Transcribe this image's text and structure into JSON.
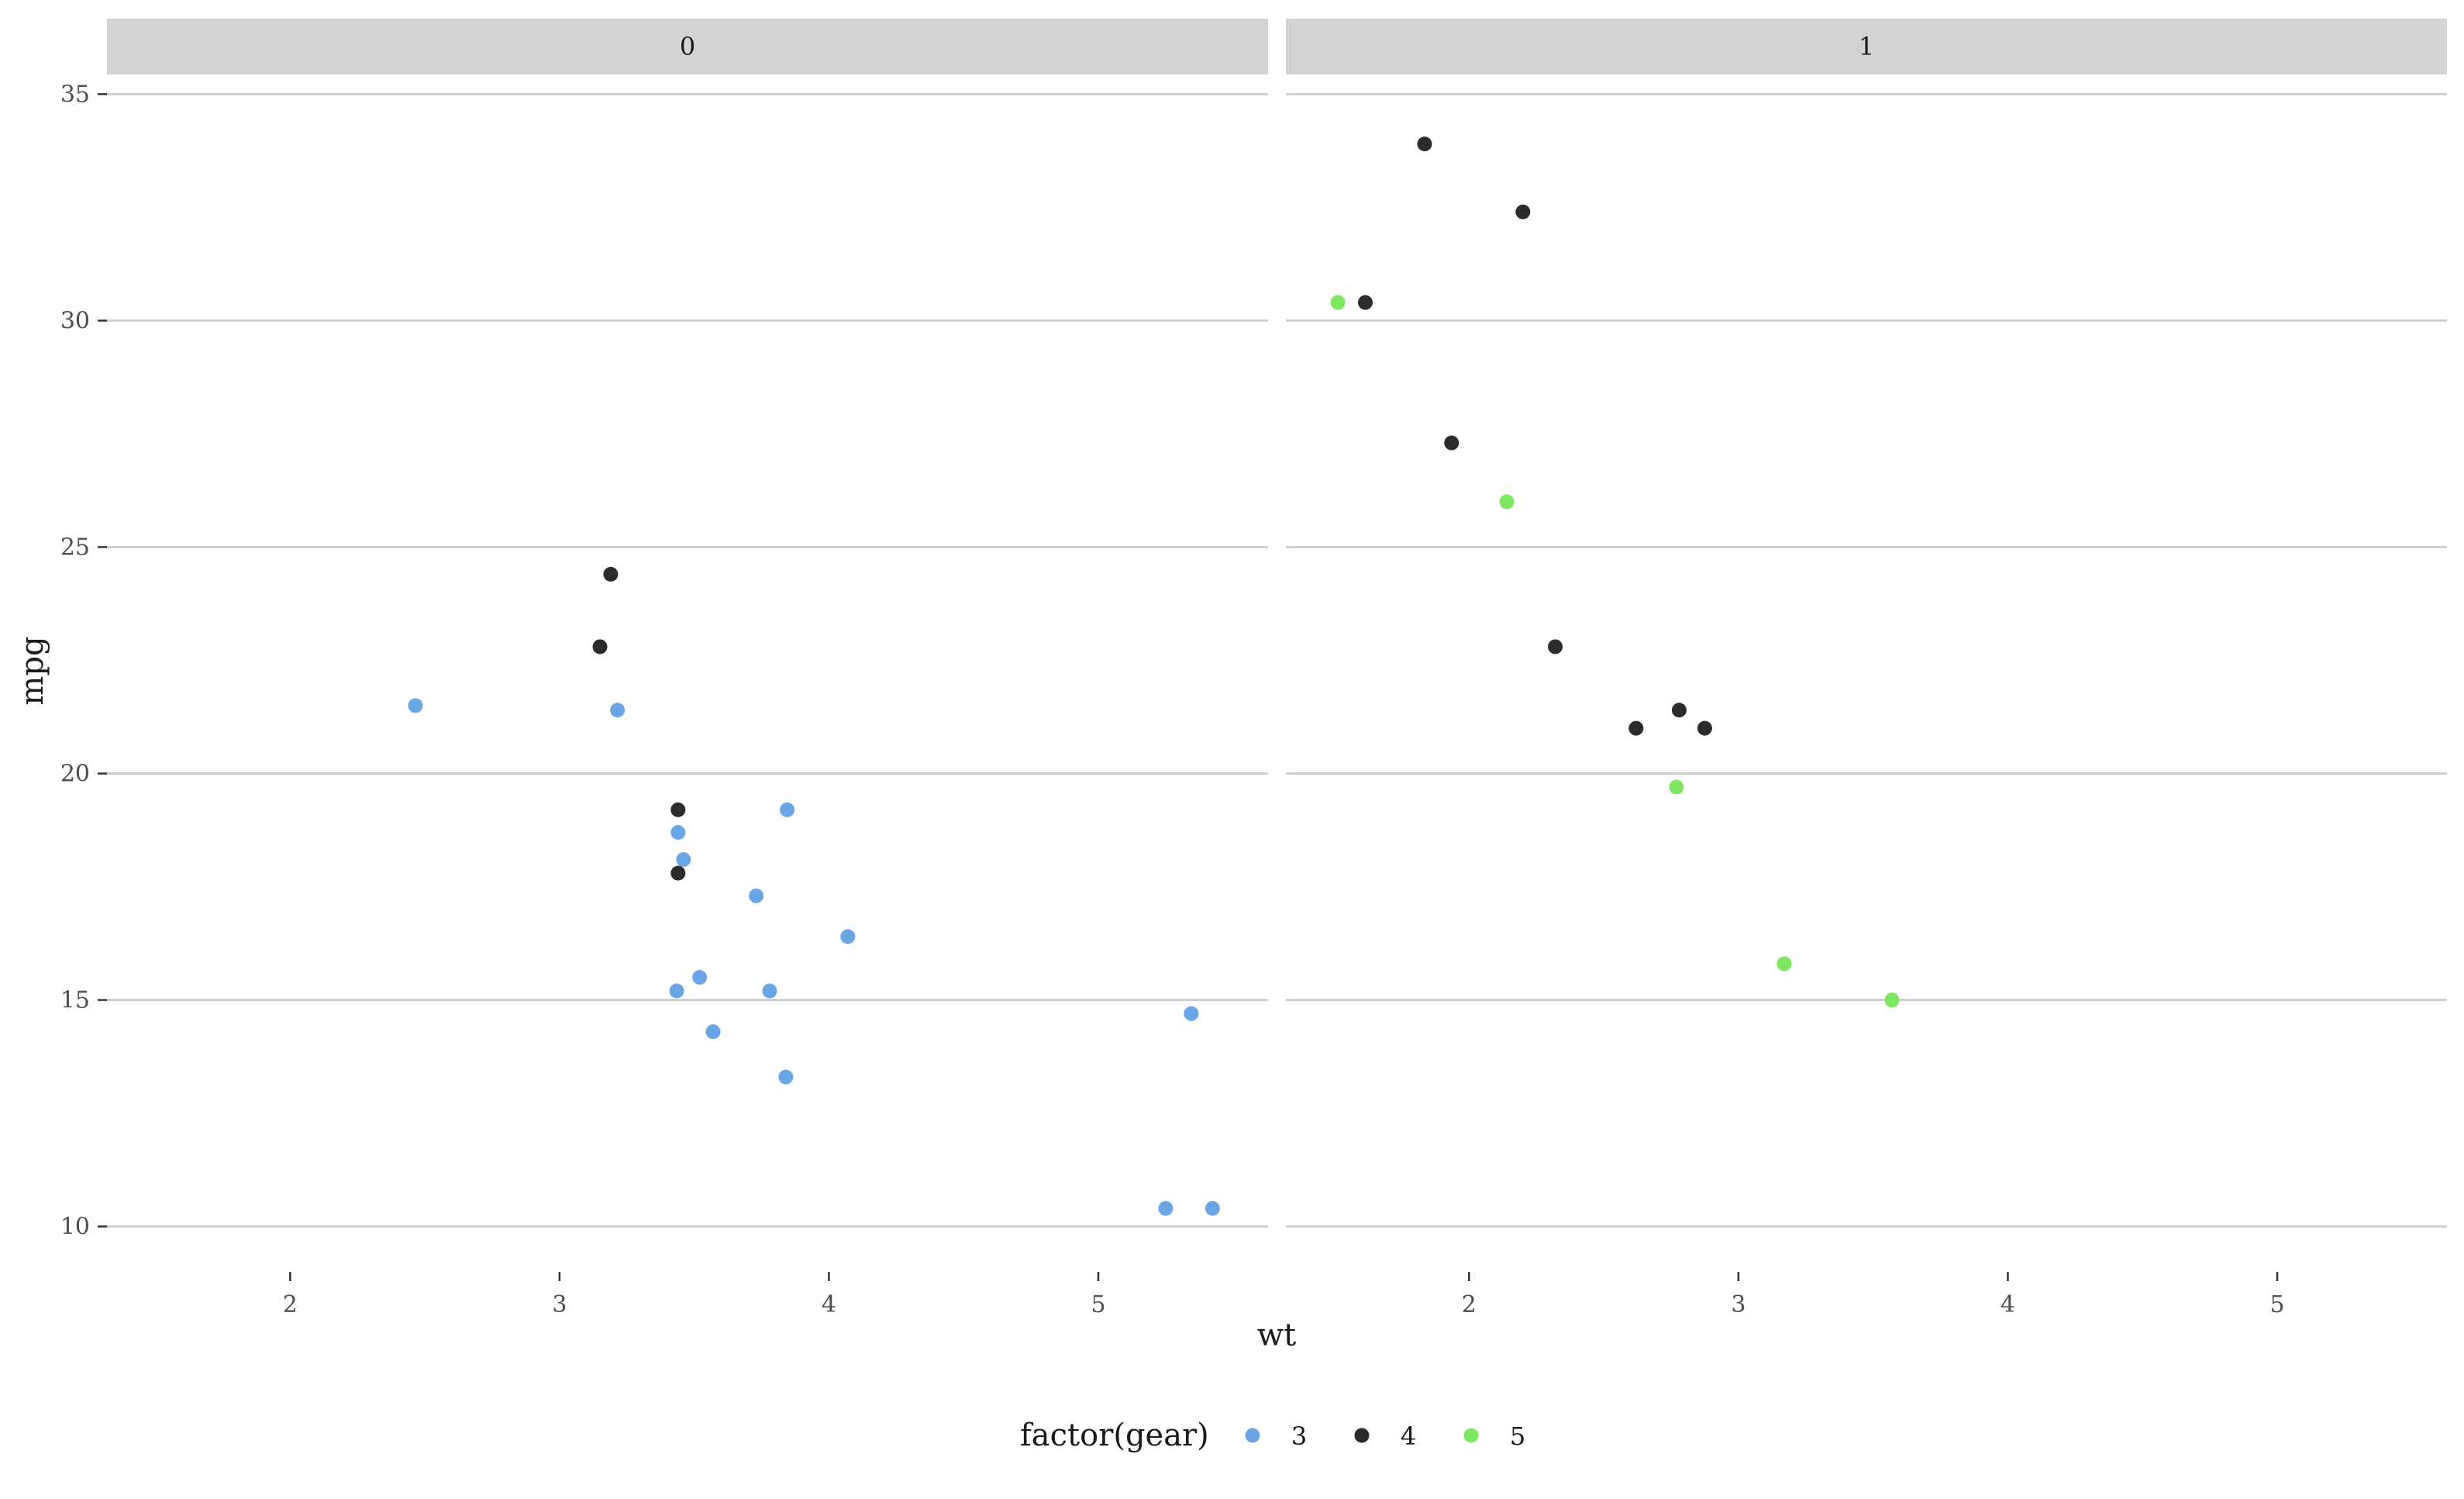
{
  "chart_data": {
    "type": "scatter",
    "title": "",
    "xlabel": "wt",
    "ylabel": "mpg",
    "xlim": [
      1.32,
      5.63
    ],
    "ylim": [
      9.0,
      35.4
    ],
    "xticks": [
      2,
      3,
      4,
      5
    ],
    "yticks": [
      10,
      15,
      20,
      25,
      30,
      35
    ],
    "grid": "horizontal major lines",
    "legend": {
      "title": "factor(gear)",
      "position": "bottom",
      "entries": [
        {
          "label": "3",
          "color": "#6aa6e6"
        },
        {
          "label": "4",
          "color": "#2b2b2b"
        },
        {
          "label": "5",
          "color": "#7de85f"
        }
      ]
    },
    "facet_variable": "am",
    "panels": [
      {
        "label": "0",
        "points": [
          {
            "wt": 3.215,
            "mpg": 21.4,
            "gear": "3"
          },
          {
            "wt": 3.44,
            "mpg": 18.7,
            "gear": "3"
          },
          {
            "wt": 3.46,
            "mpg": 18.1,
            "gear": "3"
          },
          {
            "wt": 3.57,
            "mpg": 14.3,
            "gear": "3"
          },
          {
            "wt": 4.07,
            "mpg": 16.4,
            "gear": "3"
          },
          {
            "wt": 3.73,
            "mpg": 17.3,
            "gear": "3"
          },
          {
            "wt": 3.78,
            "mpg": 15.2,
            "gear": "3"
          },
          {
            "wt": 5.25,
            "mpg": 10.4,
            "gear": "3"
          },
          {
            "wt": 5.424,
            "mpg": 10.4,
            "gear": "3"
          },
          {
            "wt": 5.345,
            "mpg": 14.7,
            "gear": "3"
          },
          {
            "wt": 2.465,
            "mpg": 21.5,
            "gear": "3"
          },
          {
            "wt": 3.52,
            "mpg": 15.5,
            "gear": "3"
          },
          {
            "wt": 3.435,
            "mpg": 15.2,
            "gear": "3"
          },
          {
            "wt": 3.84,
            "mpg": 13.3,
            "gear": "3"
          },
          {
            "wt": 3.845,
            "mpg": 19.2,
            "gear": "3"
          },
          {
            "wt": 3.19,
            "mpg": 24.4,
            "gear": "4"
          },
          {
            "wt": 3.15,
            "mpg": 22.8,
            "gear": "4"
          },
          {
            "wt": 3.44,
            "mpg": 19.2,
            "gear": "4"
          },
          {
            "wt": 3.44,
            "mpg": 17.8,
            "gear": "4"
          }
        ]
      },
      {
        "label": "1",
        "points": [
          {
            "wt": 2.62,
            "mpg": 21.0,
            "gear": "4"
          },
          {
            "wt": 2.875,
            "mpg": 21.0,
            "gear": "4"
          },
          {
            "wt": 2.32,
            "mpg": 22.8,
            "gear": "4"
          },
          {
            "wt": 2.2,
            "mpg": 32.4,
            "gear": "4"
          },
          {
            "wt": 1.615,
            "mpg": 30.4,
            "gear": "4"
          },
          {
            "wt": 1.835,
            "mpg": 33.9,
            "gear": "4"
          },
          {
            "wt": 1.935,
            "mpg": 27.3,
            "gear": "4"
          },
          {
            "wt": 2.78,
            "mpg": 21.4,
            "gear": "4"
          },
          {
            "wt": 2.14,
            "mpg": 26.0,
            "gear": "5"
          },
          {
            "wt": 1.513,
            "mpg": 30.4,
            "gear": "5"
          },
          {
            "wt": 3.17,
            "mpg": 15.8,
            "gear": "5"
          },
          {
            "wt": 2.77,
            "mpg": 19.7,
            "gear": "5"
          },
          {
            "wt": 3.57,
            "mpg": 15.0,
            "gear": "5"
          }
        ]
      }
    ]
  }
}
